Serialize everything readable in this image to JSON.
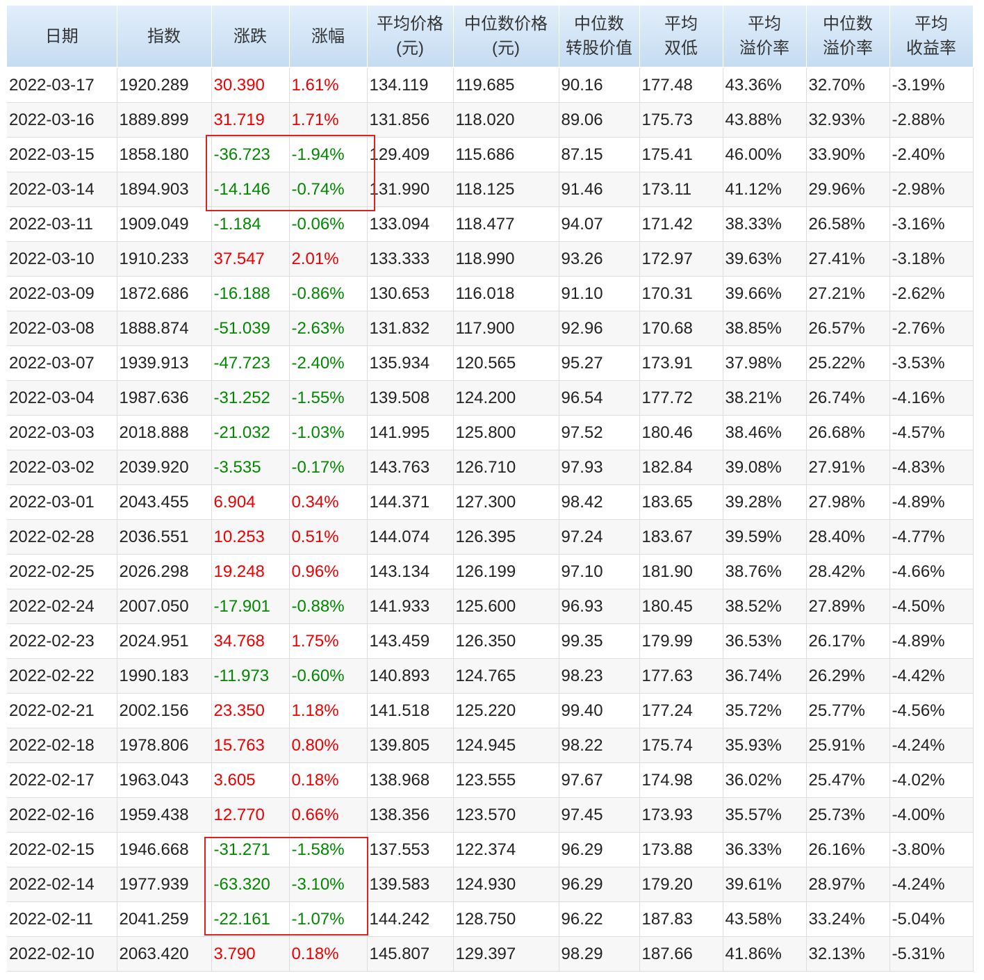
{
  "table": {
    "header": [
      [
        "日期"
      ],
      [
        "指数"
      ],
      [
        "涨跌"
      ],
      [
        "涨幅"
      ],
      [
        "平均价格",
        "(元)"
      ],
      [
        "中位数价格",
        "(元)"
      ],
      [
        "中位数",
        "转股价值"
      ],
      [
        "平均",
        "双低"
      ],
      [
        "平均",
        "溢价率"
      ],
      [
        "中位数",
        "溢价率"
      ],
      [
        "平均",
        "收益率"
      ]
    ],
    "rows": [
      [
        "2022-03-17",
        "1920.289",
        "30.390",
        "1.61%",
        "134.119",
        "119.685",
        "90.16",
        "177.48",
        "43.36%",
        "32.70%",
        "-3.19%"
      ],
      [
        "2022-03-16",
        "1889.899",
        "31.719",
        "1.71%",
        "131.856",
        "118.020",
        "89.06",
        "175.73",
        "43.88%",
        "32.93%",
        "-2.88%"
      ],
      [
        "2022-03-15",
        "1858.180",
        "-36.723",
        "-1.94%",
        "129.409",
        "115.686",
        "87.15",
        "175.41",
        "46.00%",
        "33.90%",
        "-2.40%"
      ],
      [
        "2022-03-14",
        "1894.903",
        "-14.146",
        "-0.74%",
        "131.990",
        "118.125",
        "91.46",
        "173.11",
        "41.12%",
        "29.96%",
        "-2.98%"
      ],
      [
        "2022-03-11",
        "1909.049",
        "-1.184",
        "-0.06%",
        "133.094",
        "118.477",
        "94.07",
        "171.42",
        "38.33%",
        "26.58%",
        "-3.16%"
      ],
      [
        "2022-03-10",
        "1910.233",
        "37.547",
        "2.01%",
        "133.333",
        "118.990",
        "93.26",
        "172.97",
        "39.63%",
        "27.41%",
        "-3.18%"
      ],
      [
        "2022-03-09",
        "1872.686",
        "-16.188",
        "-0.86%",
        "130.653",
        "116.018",
        "91.10",
        "170.31",
        "39.66%",
        "27.21%",
        "-2.62%"
      ],
      [
        "2022-03-08",
        "1888.874",
        "-51.039",
        "-2.63%",
        "131.832",
        "117.900",
        "92.96",
        "170.68",
        "38.85%",
        "26.57%",
        "-2.76%"
      ],
      [
        "2022-03-07",
        "1939.913",
        "-47.723",
        "-2.40%",
        "135.934",
        "120.565",
        "95.27",
        "173.91",
        "37.98%",
        "25.22%",
        "-3.53%"
      ],
      [
        "2022-03-04",
        "1987.636",
        "-31.252",
        "-1.55%",
        "139.508",
        "124.200",
        "96.54",
        "177.72",
        "38.21%",
        "26.74%",
        "-4.16%"
      ],
      [
        "2022-03-03",
        "2018.888",
        "-21.032",
        "-1.03%",
        "141.995",
        "125.800",
        "97.52",
        "180.46",
        "38.46%",
        "26.68%",
        "-4.57%"
      ],
      [
        "2022-03-02",
        "2039.920",
        "-3.535",
        "-0.17%",
        "143.763",
        "126.710",
        "97.93",
        "182.84",
        "39.08%",
        "27.91%",
        "-4.83%"
      ],
      [
        "2022-03-01",
        "2043.455",
        "6.904",
        "0.34%",
        "144.371",
        "127.300",
        "98.42",
        "183.65",
        "39.28%",
        "27.98%",
        "-4.89%"
      ],
      [
        "2022-02-28",
        "2036.551",
        "10.253",
        "0.51%",
        "144.074",
        "126.395",
        "97.24",
        "183.67",
        "39.59%",
        "28.40%",
        "-4.77%"
      ],
      [
        "2022-02-25",
        "2026.298",
        "19.248",
        "0.96%",
        "143.134",
        "126.199",
        "97.10",
        "181.90",
        "38.76%",
        "28.42%",
        "-4.66%"
      ],
      [
        "2022-02-24",
        "2007.050",
        "-17.901",
        "-0.88%",
        "141.933",
        "125.600",
        "96.93",
        "180.45",
        "38.52%",
        "27.89%",
        "-4.50%"
      ],
      [
        "2022-02-23",
        "2024.951",
        "34.768",
        "1.75%",
        "143.459",
        "126.350",
        "99.35",
        "179.99",
        "36.53%",
        "26.17%",
        "-4.89%"
      ],
      [
        "2022-02-22",
        "1990.183",
        "-11.973",
        "-0.60%",
        "140.893",
        "124.765",
        "98.23",
        "177.63",
        "36.74%",
        "26.29%",
        "-4.42%"
      ],
      [
        "2022-02-21",
        "2002.156",
        "23.350",
        "1.18%",
        "141.518",
        "125.220",
        "99.40",
        "177.24",
        "35.72%",
        "25.77%",
        "-4.56%"
      ],
      [
        "2022-02-18",
        "1978.806",
        "15.763",
        "0.80%",
        "139.805",
        "124.945",
        "98.22",
        "175.74",
        "35.93%",
        "25.91%",
        "-4.24%"
      ],
      [
        "2022-02-17",
        "1963.043",
        "3.605",
        "0.18%",
        "138.968",
        "123.555",
        "97.67",
        "174.98",
        "36.02%",
        "25.47%",
        "-4.02%"
      ],
      [
        "2022-02-16",
        "1959.438",
        "12.770",
        "0.66%",
        "138.356",
        "123.570",
        "97.45",
        "173.93",
        "35.57%",
        "25.73%",
        "-4.00%"
      ],
      [
        "2022-02-15",
        "1946.668",
        "-31.271",
        "-1.58%",
        "137.553",
        "122.374",
        "96.29",
        "173.88",
        "36.33%",
        "26.16%",
        "-3.80%"
      ],
      [
        "2022-02-14",
        "1977.939",
        "-63.320",
        "-3.10%",
        "139.583",
        "124.930",
        "96.29",
        "179.20",
        "39.61%",
        "28.97%",
        "-4.24%"
      ],
      [
        "2022-02-11",
        "2041.259",
        "-22.161",
        "-1.07%",
        "144.242",
        "128.750",
        "96.22",
        "187.83",
        "43.58%",
        "33.24%",
        "-5.04%"
      ],
      [
        "2022-02-10",
        "2063.420",
        "3.790",
        "0.18%",
        "145.807",
        "129.397",
        "98.29",
        "187.66",
        "41.86%",
        "32.13%",
        "-5.31%"
      ]
    ]
  }
}
